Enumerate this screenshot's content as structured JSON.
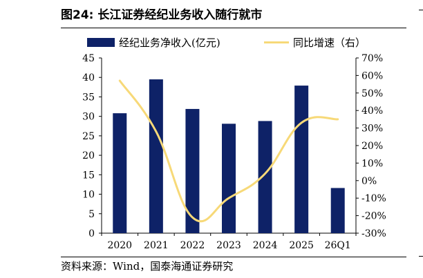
{
  "header": {
    "title": "图24:  长江证券经纪业务收入随行就市"
  },
  "footer": {
    "source": "资料来源：Wind，国泰海通证券研究"
  },
  "chart_data": {
    "type": "bar",
    "categories": [
      "2020",
      "2021",
      "2022",
      "2023",
      "2024",
      "2025",
      "26Q1"
    ],
    "series": [
      {
        "name": "经纪业务净收入(亿元)",
        "type": "bar",
        "axis": "left",
        "color": "#0e2267",
        "values": [
          30.8,
          39.5,
          31.9,
          28.1,
          28.8,
          37.9,
          11.6
        ]
      },
      {
        "name": "同比增速（右）",
        "type": "line",
        "axis": "right",
        "color": "#f7d978",
        "values": [
          57,
          28,
          -21,
          -10,
          4,
          33,
          35
        ]
      }
    ],
    "y_left": {
      "lim": [
        0,
        45
      ],
      "ticks": [
        "0",
        "5",
        "10",
        "15",
        "20",
        "25",
        "30",
        "35",
        "40",
        "45"
      ]
    },
    "y_right": {
      "lim": [
        -30,
        70
      ],
      "ticks": [
        "-30%",
        "-20%",
        "-10%",
        "0%",
        "10%",
        "20%",
        "30%",
        "40%",
        "50%",
        "60%",
        "70%"
      ]
    },
    "grid": false,
    "legend_position": "top"
  }
}
